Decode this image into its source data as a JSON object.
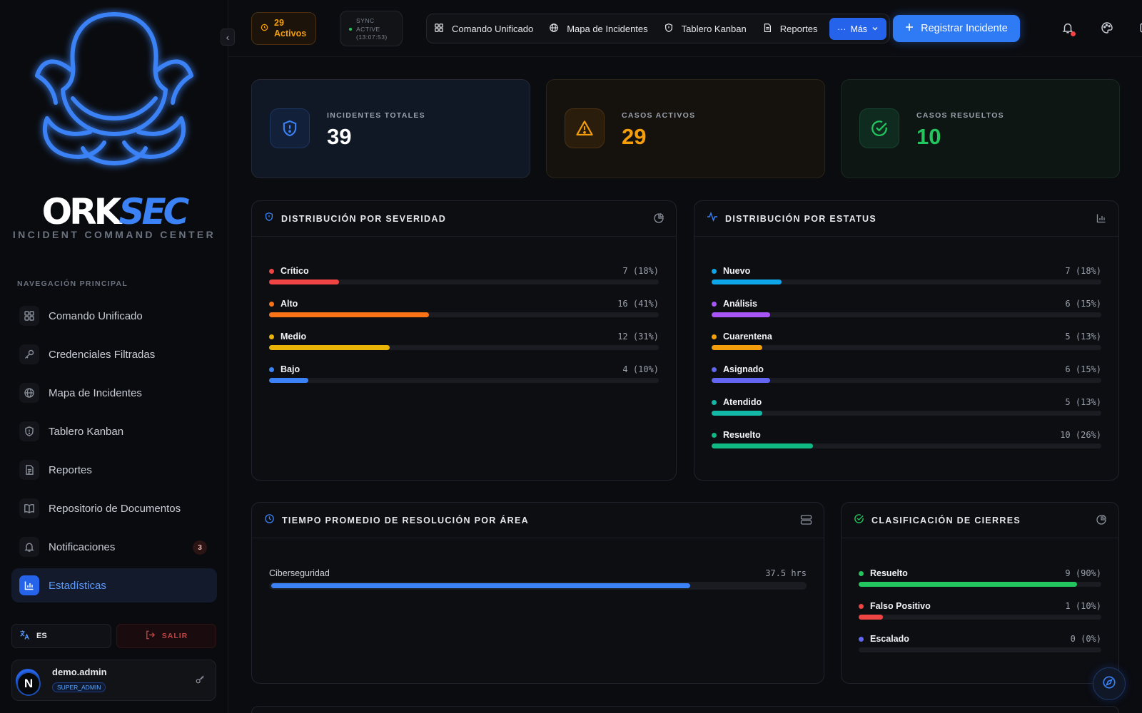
{
  "sidebar": {
    "brand_ork": "ORK",
    "brand_sec": "SEC",
    "brand_sub": "INCIDENT COMMAND CENTER",
    "nav_title": "NAVEGACIÓN PRINCIPAL",
    "items": [
      {
        "label": "Comando Unificado",
        "icon": "grid-icon"
      },
      {
        "label": "Credenciales Filtradas",
        "icon": "key-icon"
      },
      {
        "label": "Mapa de Incidentes",
        "icon": "globe-icon"
      },
      {
        "label": "Tablero Kanban",
        "icon": "shield-icon"
      },
      {
        "label": "Reportes",
        "icon": "document-icon"
      },
      {
        "label": "Repositorio de Documentos",
        "icon": "book-icon"
      },
      {
        "label": "Notificaciones",
        "icon": "bell-icon",
        "badge": "3"
      },
      {
        "label": "Estadísticas",
        "icon": "bar-chart-icon",
        "active": true
      }
    ],
    "lang": "ES",
    "logout": "SALIR",
    "user": {
      "avatar": "N",
      "name": "demo.admin",
      "role": "SUPER_ADMIN"
    }
  },
  "topbar": {
    "active_count": "29",
    "active_label": "Activos",
    "sync_line1": "SYNC",
    "sync_line2": "ACTIVE",
    "sync_time": "(13:07:53)",
    "nav": [
      "Comando Unificado",
      "Mapa de Incidentes",
      "Tablero Kanban",
      "Reportes"
    ],
    "more": "Más",
    "register": "Registrar Incidente"
  },
  "stats": [
    {
      "label": "INCIDENTES TOTALES",
      "value": "39",
      "color": "#ffffff"
    },
    {
      "label": "CASOS ACTIVOS",
      "value": "29",
      "color": "#f59e0b"
    },
    {
      "label": "CASOS RESUELTOS",
      "value": "10",
      "color": "#22c55e"
    }
  ],
  "severity": {
    "title": "DISTRIBUCIÓN POR SEVERIDAD",
    "rows": [
      {
        "name": "Crítico",
        "value": "7 (18%)",
        "pct": 18,
        "color": "#ef4444"
      },
      {
        "name": "Alto",
        "value": "16 (41%)",
        "pct": 41,
        "color": "#f97316"
      },
      {
        "name": "Medio",
        "value": "12 (31%)",
        "pct": 31,
        "color": "#eab308"
      },
      {
        "name": "Bajo",
        "value": "4 (10%)",
        "pct": 10,
        "color": "#3b82f6"
      }
    ]
  },
  "status": {
    "title": "DISTRIBUCIÓN POR ESTATUS",
    "rows": [
      {
        "name": "Nuevo",
        "value": "7 (18%)",
        "pct": 18,
        "color": "#0ea5e9"
      },
      {
        "name": "Análisis",
        "value": "6 (15%)",
        "pct": 15,
        "color": "#a855f7"
      },
      {
        "name": "Cuarentena",
        "value": "5 (13%)",
        "pct": 13,
        "color": "#f59e0b"
      },
      {
        "name": "Asignado",
        "value": "6 (15%)",
        "pct": 15,
        "color": "#6366f1"
      },
      {
        "name": "Atendido",
        "value": "5 (13%)",
        "pct": 13,
        "color": "#14b8a6"
      },
      {
        "name": "Resuelto",
        "value": "10 (26%)",
        "pct": 26,
        "color": "#10b981"
      }
    ]
  },
  "resolution": {
    "title": "TIEMPO PROMEDIO DE RESOLUCIÓN POR ÁREA",
    "rows": [
      {
        "name": "Ciberseguridad",
        "value": "37.5 hrs",
        "pct": 78,
        "color": "#3b82f6"
      }
    ]
  },
  "closures": {
    "title": "CLASIFICACIÓN DE CIERRES",
    "rows": [
      {
        "name": "Resuelto",
        "value": "9 (90%)",
        "pct": 90,
        "color": "#22c55e"
      },
      {
        "name": "Falso Positivo",
        "value": "1 (10%)",
        "pct": 10,
        "color": "#ef4444"
      },
      {
        "name": "Escalado",
        "value": "0 (0%)",
        "pct": 0,
        "color": "#6366f1"
      }
    ]
  }
}
